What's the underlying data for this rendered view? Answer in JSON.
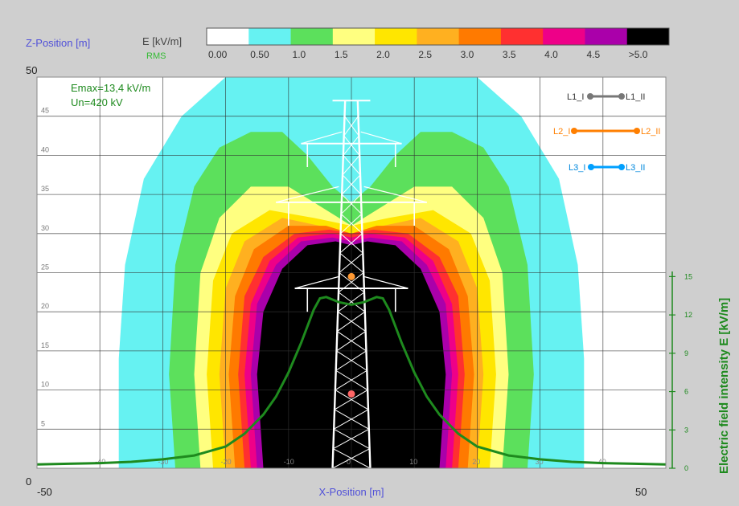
{
  "header": {
    "z_axis_title": "Z-Position [m]",
    "e_unit": "E [kV/m]",
    "e_mode": "RMS",
    "z_max_label": "50",
    "z_min_label": "0"
  },
  "info": {
    "emax": "Emax=13,4 kV/m",
    "un": "Un=420 kV"
  },
  "x_axis": {
    "title": "X-Position [m]",
    "min_label": "-50",
    "max_label": "50"
  },
  "right_axis": {
    "title": "Electric field intensity E [kV/m]"
  },
  "colors": {
    "bands": [
      "#ffffff",
      "#66f2f2",
      "#5ce05c",
      "#ffff80",
      "#ffe600",
      "#ffb020",
      "#ff7a00",
      "#ff3030",
      "#ee0088",
      "#aa00aa",
      "#000000"
    ],
    "profile": "#1e8a1e",
    "tower": "#ffffff",
    "L1": "#777777",
    "L2": "#ff7f00",
    "L3": "#00a0ff"
  },
  "legend": {
    "L1": {
      "left": "L1_I",
      "right": "L1_II"
    },
    "L2": {
      "left": "L2_I",
      "right": "L2_II"
    },
    "L3": {
      "left": "L3_I",
      "right": "L3_II"
    }
  },
  "chart_data": {
    "type": "heatmap",
    "color_scale": {
      "labels": [
        "0.00",
        "0.50",
        "1.0",
        "1.5",
        "2.0",
        "2.5",
        "3.0",
        "3.5",
        "4.0",
        "4.5",
        ">5.0"
      ],
      "thresholds": [
        0.0,
        0.5,
        1.0,
        1.5,
        2.0,
        2.5,
        3.0,
        3.5,
        4.0,
        4.5,
        5.0
      ]
    },
    "x_range": [
      -50,
      50
    ],
    "z_range": [
      0,
      50
    ],
    "grid": true,
    "z_ticks": [
      5,
      10,
      15,
      20,
      25,
      30,
      35,
      40,
      45
    ],
    "x_ticks": [
      -40,
      -30,
      -20,
      -10,
      0,
      10,
      20,
      30,
      40
    ],
    "contours": [
      {
        "level": 0.5,
        "points": [
          [
            -37,
            0
          ],
          [
            -37,
            14
          ],
          [
            -36,
            26
          ],
          [
            -33,
            37
          ],
          [
            -27,
            45
          ],
          [
            -20,
            50
          ],
          [
            20,
            50
          ],
          [
            27,
            45
          ],
          [
            33,
            37
          ],
          [
            36,
            26
          ],
          [
            37,
            14
          ],
          [
            37,
            0
          ]
        ]
      },
      {
        "level": 1.0,
        "points": [
          [
            -28,
            0
          ],
          [
            -29,
            12
          ],
          [
            -28,
            26
          ],
          [
            -25,
            36
          ],
          [
            -21,
            41
          ],
          [
            -16,
            43
          ],
          [
            -11,
            43
          ],
          [
            -7,
            40
          ],
          [
            -3,
            36
          ],
          [
            0,
            34
          ],
          [
            3,
            36
          ],
          [
            7,
            40
          ],
          [
            11,
            43
          ],
          [
            16,
            43
          ],
          [
            21,
            41
          ],
          [
            25,
            36
          ],
          [
            28,
            26
          ],
          [
            29,
            12
          ],
          [
            28,
            0
          ]
        ]
      },
      {
        "level": 1.5,
        "points": [
          [
            -24,
            0
          ],
          [
            -25,
            12
          ],
          [
            -24,
            25
          ],
          [
            -21,
            32
          ],
          [
            -16,
            36
          ],
          [
            -10,
            36
          ],
          [
            -6,
            34
          ],
          [
            -2,
            32
          ],
          [
            0,
            31
          ],
          [
            2,
            32
          ],
          [
            6,
            34
          ],
          [
            10,
            36
          ],
          [
            16,
            36
          ],
          [
            21,
            32
          ],
          [
            24,
            25
          ],
          [
            25,
            12
          ],
          [
            24,
            0
          ]
        ]
      },
      {
        "level": 2.0,
        "points": [
          [
            -22,
            0
          ],
          [
            -23,
            12
          ],
          [
            -22,
            24
          ],
          [
            -19,
            30
          ],
          [
            -13,
            33
          ],
          [
            -6,
            32
          ],
          [
            0,
            31
          ],
          [
            6,
            32
          ],
          [
            13,
            33
          ],
          [
            19,
            30
          ],
          [
            22,
            24
          ],
          [
            23,
            12
          ],
          [
            22,
            0
          ]
        ]
      },
      {
        "level": 2.5,
        "points": [
          [
            -20,
            0
          ],
          [
            -21,
            12
          ],
          [
            -20,
            23
          ],
          [
            -17,
            29
          ],
          [
            -11,
            32
          ],
          [
            -5,
            31
          ],
          [
            0,
            30
          ],
          [
            5,
            31
          ],
          [
            11,
            32
          ],
          [
            17,
            29
          ],
          [
            20,
            23
          ],
          [
            21,
            12
          ],
          [
            20,
            0
          ]
        ]
      },
      {
        "level": 3.0,
        "points": [
          [
            -18.5,
            0
          ],
          [
            -19.5,
            12
          ],
          [
            -18.5,
            22
          ],
          [
            -15.5,
            28
          ],
          [
            -10,
            31
          ],
          [
            -4,
            31
          ],
          [
            0,
            30
          ],
          [
            4,
            31
          ],
          [
            10,
            31
          ],
          [
            15.5,
            28
          ],
          [
            18.5,
            22
          ],
          [
            19.5,
            12
          ],
          [
            18.5,
            0
          ]
        ]
      },
      {
        "level": 3.5,
        "points": [
          [
            -17,
            0
          ],
          [
            -18,
            12
          ],
          [
            -17,
            22
          ],
          [
            -14,
            27
          ],
          [
            -9,
            30
          ],
          [
            -3.5,
            30.5
          ],
          [
            0,
            30
          ],
          [
            3.5,
            30.5
          ],
          [
            9,
            30
          ],
          [
            14,
            27
          ],
          [
            17,
            22
          ],
          [
            18,
            12
          ],
          [
            17,
            0
          ]
        ]
      },
      {
        "level": 4.0,
        "points": [
          [
            -16,
            0
          ],
          [
            -17,
            12
          ],
          [
            -16,
            21
          ],
          [
            -13,
            26.5
          ],
          [
            -8.5,
            29.5
          ],
          [
            -3,
            30
          ],
          [
            0,
            29.5
          ],
          [
            3,
            30
          ],
          [
            8.5,
            29.5
          ],
          [
            13,
            26.5
          ],
          [
            16,
            21
          ],
          [
            17,
            12
          ],
          [
            16,
            0
          ]
        ]
      },
      {
        "level": 4.5,
        "points": [
          [
            -15,
            0
          ],
          [
            -16,
            12
          ],
          [
            -15,
            21
          ],
          [
            -12,
            26
          ],
          [
            -8,
            29
          ],
          [
            -3,
            29.5
          ],
          [
            0,
            29
          ],
          [
            3,
            29.5
          ],
          [
            8,
            29
          ],
          [
            12,
            26
          ],
          [
            15,
            21
          ],
          [
            16,
            12
          ],
          [
            15,
            0
          ]
        ]
      },
      {
        "level": 5.0,
        "points": [
          [
            -14,
            0
          ],
          [
            -15,
            12
          ],
          [
            -14,
            20
          ],
          [
            -11,
            25.5
          ],
          [
            -7,
            28.5
          ],
          [
            -2.5,
            29
          ],
          [
            0,
            28.5
          ],
          [
            2.5,
            29
          ],
          [
            7,
            28.5
          ],
          [
            11,
            25.5
          ],
          [
            14,
            20
          ],
          [
            15,
            12
          ],
          [
            14,
            0
          ]
        ]
      }
    ],
    "profile": {
      "name": "Electric field intensity E",
      "right_axis_ticks": [
        {
          "value": 0,
          "label": "0"
        },
        {
          "value": 3,
          "label": "3"
        },
        {
          "value": 6,
          "label": "6"
        },
        {
          "value": 9,
          "label": "9"
        },
        {
          "value": 12,
          "label": "12"
        },
        {
          "value": 15,
          "label": "15"
        }
      ],
      "right_axis_range": [
        0,
        15.4
      ],
      "x": [
        -50,
        -45,
        -40,
        -35,
        -30,
        -25,
        -20,
        -17,
        -14,
        -12,
        -10,
        -8,
        -6,
        -5,
        -4,
        -3,
        -2,
        -1,
        0,
        1,
        2,
        3,
        4,
        5,
        6,
        8,
        10,
        12,
        14,
        17,
        20,
        25,
        30,
        35,
        40,
        45,
        50
      ],
      "y": [
        0.3,
        0.35,
        0.4,
        0.5,
        0.7,
        1.0,
        1.7,
        2.7,
        4.2,
        5.6,
        7.5,
        9.8,
        12.4,
        13.3,
        13.4,
        13.2,
        13.0,
        12.9,
        12.8,
        12.9,
        13.0,
        13.2,
        13.4,
        13.3,
        12.4,
        9.8,
        7.5,
        5.6,
        4.2,
        2.7,
        1.7,
        1.0,
        0.7,
        0.5,
        0.4,
        0.35,
        0.3
      ]
    },
    "tower": {
      "conductors": [
        {
          "x": 0,
          "z": 24.5,
          "color": "#ff9933"
        },
        {
          "x": 0,
          "z": 9.5,
          "color": "#ff6666"
        }
      ]
    },
    "legend_position": "top-right"
  }
}
